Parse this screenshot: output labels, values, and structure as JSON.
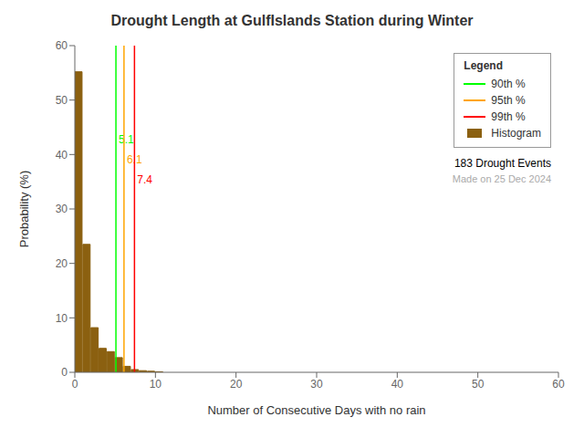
{
  "chart_data": {
    "type": "histogram",
    "title": "Drought Length at GulfIslands Station during Winter",
    "xlabel": "Number of Consecutive Days with no rain",
    "ylabel": "Probability (%)",
    "bins": [
      0,
      1,
      2,
      3,
      4,
      5,
      6,
      7,
      8,
      9,
      10,
      11
    ],
    "series": [
      {
        "name": "Histogram",
        "color": "#8B6010",
        "values": [
          55.2,
          23.5,
          8.2,
          4.4,
          3.8,
          2.7,
          1.1,
          0.5,
          0.3,
          0.2,
          0.1
        ]
      }
    ],
    "xlim": [
      0,
      60
    ],
    "ylim": [
      0,
      60
    ],
    "xticks": [
      0,
      10,
      20,
      30,
      40,
      50,
      60
    ],
    "yticks": [
      0,
      10,
      20,
      30,
      40,
      50,
      60
    ],
    "grid": false,
    "legend": "upper right",
    "legend_title": "Legend",
    "vlines": [
      {
        "name": "90th %",
        "x": 5.1,
        "color": "#00ff00",
        "label": "5.1"
      },
      {
        "name": "95th %",
        "x": 6.1,
        "color": "#ffa500",
        "label": "6.1"
      },
      {
        "name": "99th %",
        "x": 7.4,
        "color": "#ff0000",
        "label": "7.4"
      }
    ],
    "annotations": [
      {
        "text": "183 Drought Events"
      },
      {
        "text": "Made on 25 Dec 2024",
        "color": "#aaaaaa"
      }
    ]
  }
}
